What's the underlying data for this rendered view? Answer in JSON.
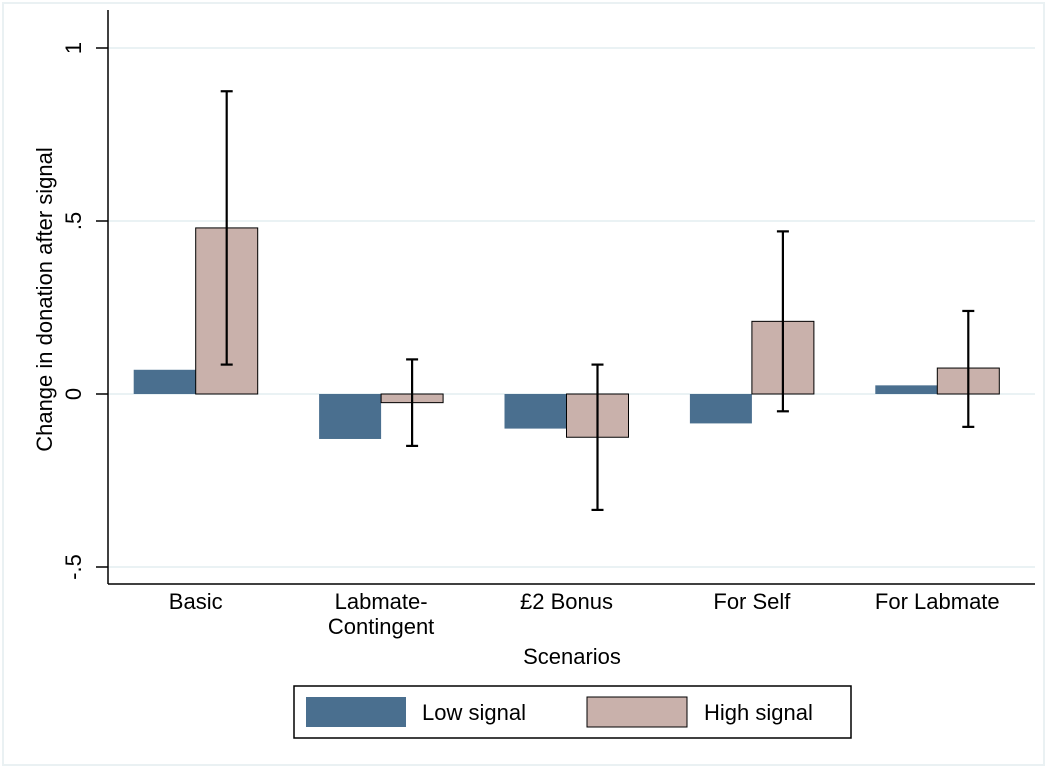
{
  "chart_data": {
    "type": "bar",
    "categories": [
      [
        "Basic"
      ],
      [
        "Labmate-",
        "Contingent"
      ],
      [
        "£2 Bonus"
      ],
      [
        "For Self"
      ],
      [
        "For Labmate"
      ]
    ],
    "series": [
      {
        "name": "Low signal",
        "values": [
          0.07,
          -0.13,
          -0.1,
          -0.085,
          0.025
        ],
        "color": "#4a6f8f",
        "errors": null
      },
      {
        "name": "High signal",
        "values": [
          0.48,
          -0.025,
          -0.125,
          0.21,
          0.075
        ],
        "color": "#c9b1ab",
        "errors": [
          [
            0.085,
            0.875
          ],
          [
            -0.15,
            0.1
          ],
          [
            -0.335,
            0.085
          ],
          [
            -0.05,
            0.47
          ],
          [
            -0.095,
            0.24
          ]
        ]
      }
    ],
    "xlabel": "Scenarios",
    "ylabel": "Change in donation after signal",
    "ylim": [
      -0.5,
      1
    ],
    "yticks": [
      -0.5,
      0,
      0.5,
      1
    ],
    "ytick_labels": [
      "-.5",
      "0",
      ".5",
      "1"
    ],
    "grid": true,
    "legend_position": "bottom"
  }
}
